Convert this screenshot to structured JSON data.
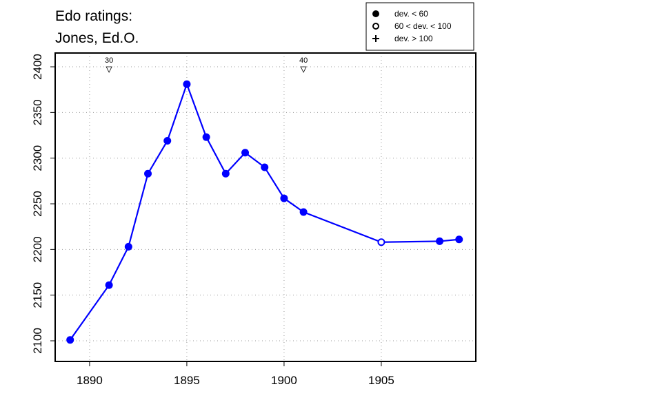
{
  "chart_data": {
    "type": "line",
    "title": "Edo ratings:",
    "subtitle": "Jones, Ed.O.",
    "x": [
      1889,
      1891,
      1892,
      1893,
      1894,
      1895,
      1896,
      1897,
      1898,
      1899,
      1900,
      1901,
      1905,
      1908,
      1909
    ],
    "series": [
      {
        "color": "#0000ff",
        "values": [
          2101,
          2161,
          2203,
          2283,
          2319,
          2381,
          2323,
          2283,
          2306,
          2290,
          2256,
          2241,
          2208,
          2209,
          2211
        ],
        "markers": [
          "filled",
          "filled",
          "filled",
          "filled",
          "filled",
          "filled",
          "filled",
          "filled",
          "filled",
          "filled",
          "filled",
          "filled",
          "open",
          "filled",
          "filled"
        ]
      }
    ],
    "xlim": [
      1888.23,
      1909.86
    ],
    "ylim": [
      2077.4,
      2415.1
    ],
    "xticks": [
      1890,
      1895,
      1900,
      1905
    ],
    "yticks": [
      2100,
      2150,
      2200,
      2250,
      2300,
      2350,
      2400
    ],
    "grid": true,
    "annotations": [
      {
        "x": 1891,
        "label": "30"
      },
      {
        "x": 1901,
        "label": "40"
      }
    ],
    "legend": {
      "position": "top-right",
      "entries": [
        {
          "label": "dev. < 60",
          "symbol": "filled"
        },
        {
          "label": "60 < dev. < 100",
          "symbol": "open"
        },
        {
          "label": "dev. > 100",
          "symbol": "plus"
        }
      ]
    }
  }
}
